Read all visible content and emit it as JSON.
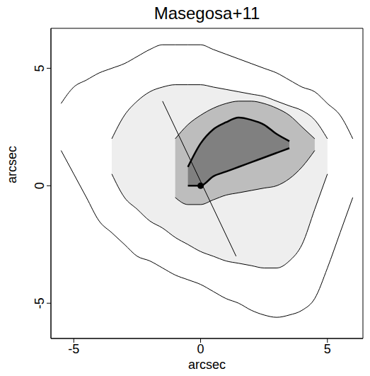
{
  "chart_data": {
    "type": "contour",
    "title": "Masegosa+11",
    "x_label": "arcsec",
    "y_label": "arcsec",
    "xlim": [
      -5.9,
      6.4
    ],
    "ylim": [
      -6.5,
      6.7
    ],
    "xticks": [
      -5,
      0,
      5
    ],
    "yticks": [
      -5,
      0,
      5
    ],
    "x": [
      -5.5,
      -5,
      -4.5,
      -4,
      -3.5,
      -3,
      -2.5,
      -2,
      -1.5,
      -1,
      -0.5,
      0,
      0.5,
      1,
      1.5,
      2,
      2.5,
      3,
      3.5,
      4,
      4.5,
      5,
      5.5,
      6
    ],
    "contours": [
      {
        "color": "#ffffff",
        "y_low": [
          1.5,
          0.5,
          -0.5,
          -1.5,
          -2.0,
          -2.5,
          -3.0,
          -3.2,
          -3.5,
          -3.8,
          -4.0,
          -4.2,
          -4.5,
          -4.8,
          -5.0,
          -5.3,
          -5.5,
          -5.6,
          -5.5,
          -5.3,
          -4.8,
          -3.5,
          -2.0,
          -0.5
        ],
        "y_high": [
          3.5,
          4.2,
          4.5,
          4.8,
          5.0,
          5.2,
          5.5,
          5.8,
          6.0,
          6.0,
          6.0,
          6.0,
          5.8,
          5.6,
          5.4,
          5.2,
          5.0,
          4.8,
          4.5,
          4.2,
          4.0,
          3.5,
          3.0,
          2.0
        ]
      },
      {
        "color": "#eeeeee",
        "y_low": [
          null,
          null,
          null,
          null,
          0.5,
          -0.5,
          -1.0,
          -1.5,
          -1.8,
          -2.2,
          -2.5,
          -2.8,
          -3.0,
          -3.2,
          -3.3,
          -3.4,
          -3.5,
          -3.5,
          -3.2,
          -2.5,
          -1.0,
          0.5,
          null,
          null
        ],
        "y_high": [
          null,
          null,
          null,
          null,
          2.0,
          3.0,
          3.6,
          4.0,
          4.2,
          4.3,
          4.3,
          4.3,
          4.2,
          4.1,
          4.0,
          3.9,
          3.8,
          3.6,
          3.4,
          3.2,
          2.8,
          2.0,
          null,
          null
        ]
      },
      {
        "color": "#bdbdbd",
        "y_low": [
          null,
          null,
          null,
          null,
          null,
          null,
          null,
          null,
          null,
          -0.5,
          -0.8,
          -0.8,
          -0.6,
          -0.4,
          -0.3,
          -0.2,
          -0.1,
          0.0,
          0.3,
          0.8,
          1.5,
          null,
          null,
          null
        ],
        "y_high": [
          null,
          null,
          null,
          null,
          null,
          null,
          null,
          null,
          null,
          2.0,
          2.6,
          3.0,
          3.3,
          3.5,
          3.6,
          3.6,
          3.5,
          3.3,
          3.0,
          2.5,
          2.0,
          null,
          null,
          null
        ]
      },
      {
        "color": "#808080",
        "y_low": [
          null,
          null,
          null,
          null,
          null,
          null,
          null,
          null,
          null,
          null,
          0.0,
          0.0,
          0.4,
          0.6,
          0.8,
          1.0,
          1.2,
          1.4,
          1.6,
          null,
          null,
          null,
          null,
          null
        ],
        "y_high": [
          null,
          null,
          null,
          null,
          null,
          null,
          null,
          null,
          null,
          null,
          0.8,
          1.8,
          2.4,
          2.7,
          2.9,
          2.8,
          2.6,
          2.2,
          1.9,
          null,
          null,
          null,
          null,
          null
        ]
      }
    ],
    "nucleus": {
      "x": 0,
      "y": 0,
      "color": "#000000"
    },
    "line": {
      "x": [
        -1.5,
        1.4
      ],
      "y": [
        3.6,
        -3.0
      ]
    }
  }
}
